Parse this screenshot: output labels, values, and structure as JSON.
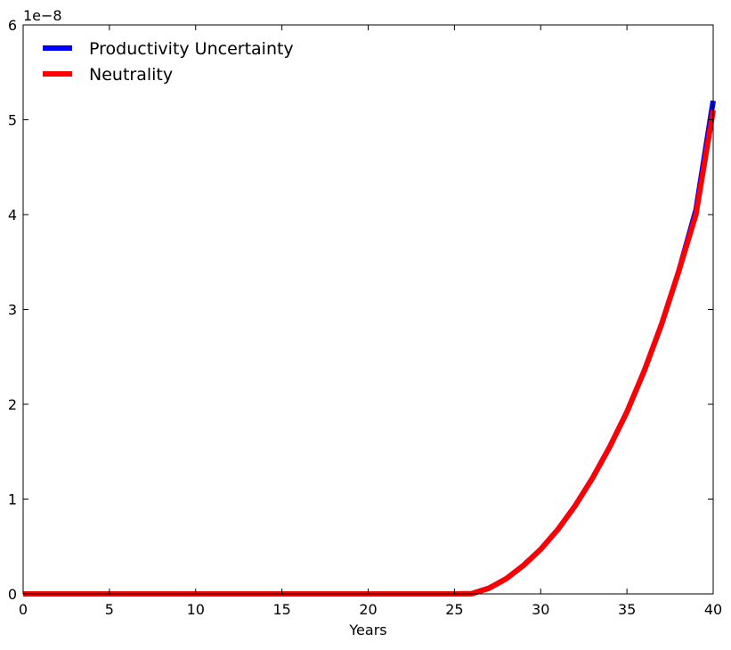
{
  "chart_data": {
    "type": "line",
    "title": "",
    "xlabel": "Years",
    "ylabel": "",
    "y_offset_label": "1e−8",
    "xlim": [
      0,
      40
    ],
    "ylim": [
      0,
      6
    ],
    "x_ticks": [
      0,
      5,
      10,
      15,
      20,
      25,
      30,
      35,
      40
    ],
    "y_ticks": [
      0,
      1,
      2,
      3,
      4,
      5,
      6
    ],
    "x_tick_labels": [
      "0",
      "5",
      "10",
      "15",
      "20",
      "25",
      "30",
      "35",
      "40"
    ],
    "y_tick_labels": [
      "0",
      "1",
      "2",
      "3",
      "4",
      "5",
      "6"
    ],
    "grid": false,
    "legend_position": "top-left",
    "x": [
      0,
      5,
      10,
      15,
      20,
      25,
      26,
      27,
      28,
      29,
      30,
      31,
      32,
      33,
      34,
      35,
      36,
      37,
      38,
      39,
      40
    ],
    "series": [
      {
        "name": "Productivity Uncertainty",
        "color": "#0000ff",
        "values": [
          0,
          0,
          0,
          0,
          0,
          0,
          0.002,
          0.06,
          0.16,
          0.3,
          0.47,
          0.68,
          0.93,
          1.22,
          1.55,
          1.92,
          2.35,
          2.84,
          3.4,
          4.05,
          5.2
        ]
      },
      {
        "name": "Neutrality",
        "color": "#ff0000",
        "values": [
          0,
          0,
          0,
          0,
          0,
          0,
          0.002,
          0.06,
          0.16,
          0.3,
          0.47,
          0.68,
          0.93,
          1.22,
          1.55,
          1.92,
          2.35,
          2.84,
          3.4,
          4.0,
          5.1
        ]
      }
    ]
  }
}
